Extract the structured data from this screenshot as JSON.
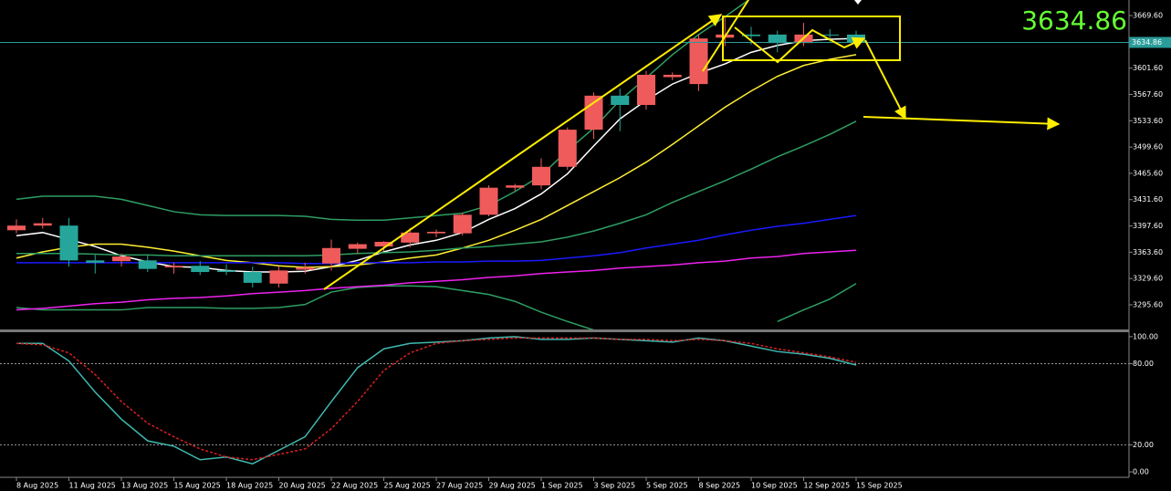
{
  "chart_data": [
    {
      "type": "candlestick",
      "categories": [
        "8 Aug 2025",
        null,
        "11 Aug 2025",
        null,
        "13 Aug 2025",
        null,
        "15 Aug 2025",
        null,
        "18 Aug 2025",
        null,
        "20 Aug 2025",
        null,
        "22 Aug 2025",
        null,
        "25 Aug 2025",
        null,
        "27 Aug 2025",
        null,
        "29 Aug 2025",
        null,
        "1 Sep 2025",
        null,
        "3 Sep 2025",
        null,
        "5 Sep 2025",
        null,
        "8 Sep 2025",
        null,
        "10 Sep 2025",
        null,
        "12 Sep 2025",
        null,
        "15 Sep 2025"
      ],
      "open": [
        3392,
        3398,
        3398,
        3353,
        3352,
        3353,
        3344,
        3346,
        3340,
        3338,
        3323,
        3341,
        3349,
        3368,
        3371,
        3376,
        3388,
        3388,
        3412,
        3447,
        3450,
        3474,
        3522,
        3566,
        3554,
        3590,
        3581,
        3641,
        3645,
        3645,
        3634,
        3645,
        3645
      ],
      "high": [
        3406,
        3408,
        3408,
        3360,
        3362,
        3360,
        3350,
        3352,
        3348,
        3345,
        3345,
        3350,
        3380,
        3376,
        3378,
        3395,
        3393,
        3415,
        3450,
        3452,
        3485,
        3525,
        3570,
        3575,
        3598,
        3596,
        3645,
        3668,
        3655,
        3650,
        3660,
        3652,
        3650
      ],
      "low": [
        3388,
        3394,
        3345,
        3336,
        3345,
        3338,
        3336,
        3334,
        3334,
        3318,
        3318,
        3336,
        3340,
        3362,
        3365,
        3370,
        3383,
        3385,
        3410,
        3443,
        3445,
        3470,
        3510,
        3520,
        3548,
        3586,
        3572,
        3630,
        3632,
        3622,
        3630,
        3636,
        3630
      ],
      "close": [
        3398,
        3401,
        3353,
        3350,
        3358,
        3342,
        3346,
        3338,
        3338,
        3324,
        3340,
        3344,
        3369,
        3374,
        3377,
        3389,
        3390,
        3412,
        3447,
        3450,
        3474,
        3522,
        3566,
        3554,
        3593,
        3593,
        3640,
        3645,
        3643,
        3634,
        3645,
        3644,
        3634.86
      ],
      "up_color": "#ef5b5b",
      "down_color": "#26a69a",
      "last_price": 3634.86,
      "last_price_color": "#2a9d9a",
      "ylim": [
        3263.7,
        3689.7
      ],
      "yticks": [
        {
          "value": 3669.6,
          "label": "3669.60"
        },
        {
          "value": 3601.6,
          "label": "3601.60"
        },
        {
          "value": 3567.6,
          "label": "3567.60"
        },
        {
          "value": 3533.6,
          "label": "3533.60"
        },
        {
          "value": 3499.6,
          "label": "3499.60"
        },
        {
          "value": 3465.6,
          "label": "3465.60"
        },
        {
          "value": 3431.6,
          "label": "3431.60"
        },
        {
          "value": 3397.6,
          "label": "3397.60"
        },
        {
          "value": 3363.6,
          "label": "3363.60"
        },
        {
          "value": 3329.6,
          "label": "3329.60"
        },
        {
          "value": 3295.6,
          "label": "3295.60"
        }
      ],
      "series": [
        {
          "color": "#ffffff",
          "values": [
            3385,
            3389,
            3380,
            3371,
            3359,
            3351,
            3345,
            3344,
            3340,
            3338,
            3338,
            3339,
            3345,
            3353,
            3364,
            3373,
            3379,
            3389,
            3406,
            3420,
            3439,
            3465,
            3501,
            3536,
            3560,
            3581,
            3595,
            3607,
            3622,
            3631,
            3637,
            3639,
            3640
          ]
        },
        {
          "color": "#ffee33",
          "values": [
            3356,
            3364,
            3370,
            3374,
            3374,
            3370,
            3365,
            3359,
            3353,
            3350,
            3346,
            3344,
            3345,
            3347,
            3351,
            3356,
            3360,
            3369,
            3379,
            3392,
            3406,
            3424,
            3442,
            3460,
            3480,
            3503,
            3527,
            3551,
            3572,
            3591,
            3605,
            3613,
            3619
          ]
        },
        {
          "color": "#2e9e62",
          "values": [
            3362,
            3362,
            3362,
            3361,
            3360,
            3360,
            3359,
            3359,
            3359,
            3359,
            3359,
            3359,
            3360,
            3362,
            3363,
            3364,
            3366,
            3369,
            3371,
            3374,
            3377,
            3383,
            3391,
            3401,
            3412,
            3428,
            3442,
            3456,
            3471,
            3487,
            3501,
            3516,
            3533
          ]
        },
        {
          "color": "#2e9e62",
          "values": [
            3432,
            3436,
            3436,
            3436,
            3432,
            3424,
            3416,
            3412,
            3411,
            3411,
            3411,
            3410,
            3406,
            3405,
            3405,
            3408,
            3411,
            3414,
            3424,
            3442,
            3463,
            3495,
            3524,
            3560,
            3589,
            3619,
            3645,
            3668,
            3692,
            null,
            null,
            null,
            null
          ]
        },
        {
          "color": "#2e9e62",
          "values": [
            3292,
            3289,
            3289,
            3289,
            3289,
            3292,
            3292,
            3292,
            3291,
            3291,
            3292,
            3296,
            3312,
            3318,
            3320,
            3320,
            3319,
            3314,
            3309,
            3300,
            3286,
            3274,
            3263,
            null,
            null,
            null,
            null,
            null,
            null,
            3274,
            3289,
            3303,
            3323
          ]
        },
        {
          "color": "#1a1aff",
          "values": [
            3350,
            3350,
            3350,
            3350,
            3350,
            3350,
            3350,
            3350,
            3350,
            3350,
            3350,
            3349,
            3349,
            3350,
            3350,
            3350,
            3351,
            3351,
            3352,
            3352,
            3353,
            3356,
            3359,
            3363,
            3369,
            3374,
            3379,
            3386,
            3392,
            3397,
            3401,
            3406,
            3411
          ]
        },
        {
          "color": "#ee22ee",
          "values": [
            3289,
            3291,
            3294,
            3297,
            3299,
            3302,
            3304,
            3305,
            3307,
            3310,
            3312,
            3314,
            3317,
            3319,
            3321,
            3324,
            3326,
            3328,
            3331,
            3333,
            3336,
            3338,
            3340,
            3343,
            3345,
            3347,
            3350,
            3352,
            3356,
            3358,
            3362,
            3364,
            3366
          ]
        }
      ]
    },
    {
      "type": "line",
      "ylim": [
        -4,
        103.3
      ],
      "yticks": [
        {
          "value": 100,
          "label": "100.00"
        },
        {
          "value": 80,
          "label": "80.00"
        },
        {
          "value": 20,
          "label": "20.00"
        },
        {
          "value": 0,
          "label": "0.00"
        }
      ],
      "levels": [
        80,
        20
      ],
      "series": [
        {
          "color": "#3fb8b0",
          "dashed": false,
          "values": [
            95,
            95,
            82,
            59,
            39,
            23,
            19,
            9,
            11,
            6,
            16,
            26,
            52,
            77,
            91,
            95,
            96,
            97,
            99,
            100,
            98,
            98,
            99,
            98,
            97,
            96,
            99,
            97,
            93,
            89,
            87,
            84,
            79
          ]
        },
        {
          "color": "#d62020",
          "dashed": true,
          "values": [
            95,
            94,
            88,
            72,
            52,
            36,
            26,
            17,
            11,
            9,
            13,
            17,
            32,
            52,
            75,
            88,
            95,
            97,
            98,
            99,
            99,
            99,
            99,
            98,
            98,
            97,
            98,
            97,
            95,
            91,
            88,
            85,
            81
          ]
        }
      ]
    }
  ]
}
